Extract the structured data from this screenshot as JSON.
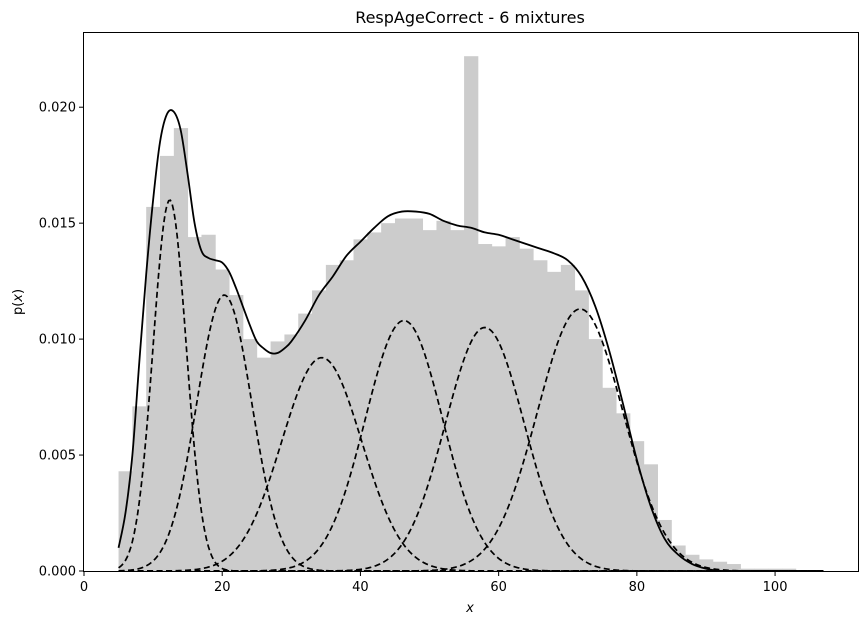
{
  "chart_data": {
    "type": "histogram",
    "title": "RespAgeCorrect - 6 mixtures",
    "xlabel": "x",
    "ylabel_prefix": "p(",
    "ylabel_var": "x",
    "ylabel_suffix": ")",
    "xlim": [
      0,
      112
    ],
    "ylim": [
      0,
      0.0232
    ],
    "grid": false,
    "x_ticks": [
      0,
      20,
      40,
      60,
      80,
      100
    ],
    "x_tick_labels": [
      "0",
      "20",
      "40",
      "60",
      "80",
      "100"
    ],
    "y_ticks": [
      0,
      0.005,
      0.01,
      0.015,
      0.02
    ],
    "y_tick_labels": [
      "0.000",
      "0.005",
      "0.010",
      "0.015",
      "0.020"
    ],
    "histogram": {
      "color": "#cccccc",
      "bin_width": 2,
      "bin_start": 5,
      "values": [
        0.0043,
        0.0071,
        0.0157,
        0.0179,
        0.0191,
        0.0144,
        0.0145,
        0.013,
        0.0119,
        0.01,
        0.0092,
        0.0099,
        0.0102,
        0.0111,
        0.0121,
        0.0132,
        0.0134,
        0.0143,
        0.0146,
        0.015,
        0.0152,
        0.0152,
        0.0147,
        0.0151,
        0.0147,
        0.0222,
        0.0141,
        0.014,
        0.0144,
        0.0139,
        0.0134,
        0.0129,
        0.0132,
        0.0121,
        0.01,
        0.0079,
        0.0068,
        0.0056,
        0.0046,
        0.0022,
        0.0011,
        0.0007,
        0.0005,
        0.0004,
        0.0003,
        0.0001,
        0.0001,
        0.0001,
        0.0001,
        0.0,
        0.0
      ]
    },
    "mixture_total": {
      "style": "solid",
      "color": "#000000",
      "x": [
        5,
        6,
        7,
        8,
        9,
        10,
        11,
        12,
        13,
        14,
        15,
        16,
        17,
        18,
        19,
        20,
        21,
        22,
        23,
        24,
        25,
        26,
        27,
        28,
        29,
        30,
        32,
        34,
        36,
        38,
        40,
        42,
        44,
        46,
        48,
        50,
        52,
        54,
        56,
        58,
        60,
        62,
        64,
        66,
        68,
        70,
        72,
        74,
        76,
        78,
        80,
        82,
        84,
        86,
        88,
        90,
        92,
        95,
        100,
        107
      ],
      "y": [
        0.001,
        0.0025,
        0.005,
        0.009,
        0.0128,
        0.016,
        0.0185,
        0.0197,
        0.0198,
        0.019,
        0.0171,
        0.015,
        0.0138,
        0.0135,
        0.0134,
        0.0133,
        0.0129,
        0.0122,
        0.0114,
        0.0106,
        0.0099,
        0.0096,
        0.0094,
        0.0094,
        0.0096,
        0.0099,
        0.0108,
        0.0119,
        0.0127,
        0.0136,
        0.0142,
        0.0148,
        0.0153,
        0.0155,
        0.0155,
        0.0154,
        0.0151,
        0.0149,
        0.0148,
        0.0146,
        0.0145,
        0.0143,
        0.0141,
        0.0139,
        0.0137,
        0.0134,
        0.0127,
        0.0114,
        0.0095,
        0.0072,
        0.0048,
        0.0028,
        0.0014,
        0.0007,
        0.0003,
        0.0001,
        0.0,
        0.0,
        0.0,
        0.0
      ]
    },
    "components": [
      {
        "style": "dashed",
        "mean": 12.4,
        "sd": 2.4,
        "peak": 0.016
      },
      {
        "style": "dashed",
        "mean": 20.3,
        "sd": 4.0,
        "peak": 0.0119
      },
      {
        "style": "dashed",
        "mean": 34.4,
        "sd": 5.8,
        "peak": 0.0092
      },
      {
        "style": "dashed",
        "mean": 46.3,
        "sd": 5.6,
        "peak": 0.0108
      },
      {
        "style": "dashed",
        "mean": 58.0,
        "sd": 5.7,
        "peak": 0.0105
      },
      {
        "style": "dashed",
        "mean": 71.8,
        "sd": 6.2,
        "peak": 0.0113
      }
    ],
    "curve_x_range": [
      5,
      107
    ]
  }
}
